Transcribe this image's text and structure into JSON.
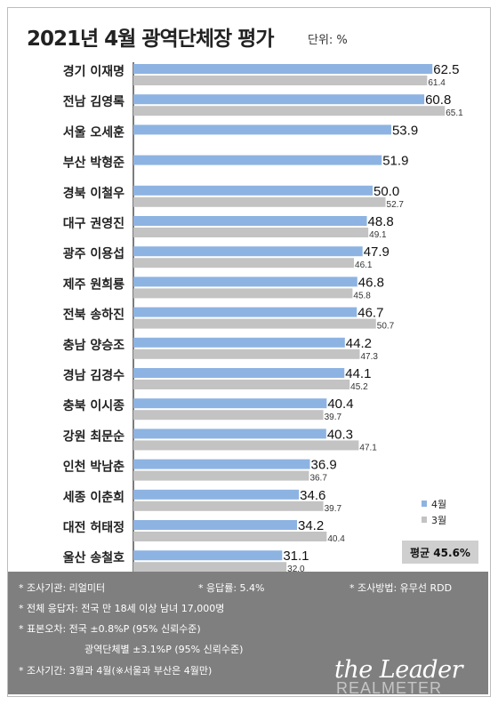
{
  "title": "2021년 4월 광역단체장 평가",
  "unit": "단위: %",
  "legend": [
    {
      "label": "4월",
      "color": "#8db3e2"
    },
    {
      "label": "3월",
      "color": "#c3c3c3"
    }
  ],
  "average": "평균 45.6%",
  "chart_data": {
    "type": "bar",
    "orientation": "horizontal",
    "categories": [
      "경기 이재명",
      "전남 김영록",
      "서울 오세훈",
      "부산 박형준",
      "경북 이철우",
      "대구 권영진",
      "광주 이용섭",
      "제주 원희룡",
      "전북 송하진",
      "충남 양승조",
      "경남 김경수",
      "충북 이시종",
      "강원 최문순",
      "인천 박남춘",
      "세종 이춘희",
      "대전 허태정",
      "울산 송철호"
    ],
    "series": [
      {
        "name": "4월",
        "color": "#8db3e2",
        "values": [
          62.5,
          60.8,
          53.9,
          51.9,
          50.0,
          48.8,
          47.9,
          46.8,
          46.7,
          44.2,
          44.1,
          40.4,
          40.3,
          36.9,
          34.6,
          34.2,
          31.1
        ],
        "labels": [
          "62.5",
          "60.8",
          "53.9",
          "51.9",
          "50.0",
          "48.8",
          "47.9",
          "46.8",
          "46.7",
          "44.2",
          "44.1",
          "40.4",
          "40.3",
          "36.9",
          "34.6",
          "34.2",
          "31.1"
        ]
      },
      {
        "name": "3월",
        "color": "#c3c3c3",
        "values": [
          61.4,
          65.1,
          null,
          null,
          52.7,
          49.1,
          46.1,
          45.8,
          50.7,
          47.3,
          45.2,
          39.7,
          47.1,
          36.7,
          39.7,
          40.4,
          32.0
        ],
        "labels": [
          "61.4",
          "65.1",
          "",
          "",
          "52.7",
          "49.1",
          "46.1",
          "45.8",
          "50.7",
          "47.3",
          "45.2",
          "39.7",
          "47.1",
          "36.7",
          "39.7",
          "40.4",
          "32.0"
        ]
      }
    ],
    "xlim": [
      0,
      65.1
    ],
    "grid": false
  },
  "notes": {
    "l1_a": "* 조사기관: 리얼미터",
    "l1_b": "* 응답률: 5.4%",
    "l1_c": "* 조사방법: 유무선 RDD",
    "l2": "* 전체 응답자: 전국 만 18세 이상 남녀 17,000명",
    "l3": "* 표본오차: 전국 ±0.8%P (95% 신뢰수준)",
    "l4": "광역단체별 ±3.1%P (95% 신뢰수준)",
    "l5": "* 조사기간: 3월과 4월(※서울과 부산은 4월만)"
  },
  "watermark": {
    "logo": "the Leader",
    "brand": "REALMETER"
  }
}
